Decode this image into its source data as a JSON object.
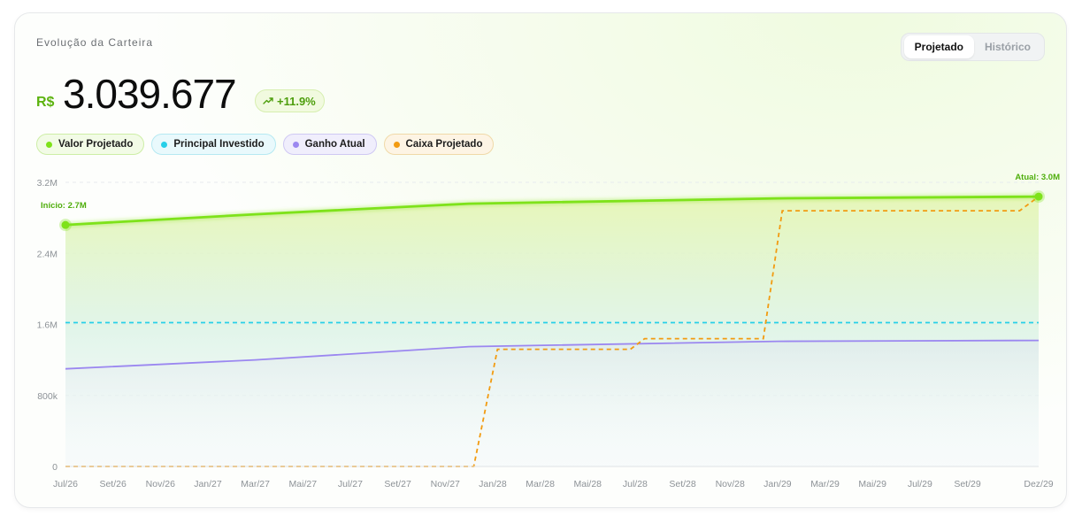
{
  "card": {
    "title": "Evolução da Carteira",
    "currency": "R$",
    "total_value": "3.039.677",
    "change": "+11.9%",
    "change_icon": "trending-up-icon"
  },
  "toggle": {
    "options": [
      "Projetado",
      "Histórico"
    ],
    "active": "Projetado"
  },
  "legend": [
    {
      "label": "Valor Projetado",
      "color": "#7ee21a",
      "bg": "#f2fbe6",
      "border": "#cdeea6"
    },
    {
      "label": "Principal Investido",
      "color": "#27cfe8",
      "bg": "#e9f9fc",
      "border": "#b5e9f2"
    },
    {
      "label": "Ganho Atual",
      "color": "#9b87f0",
      "bg": "#f0eefc",
      "border": "#cfc8f3"
    },
    {
      "label": "Caixa Projetado",
      "color": "#f29b11",
      "bg": "#fdf4e4",
      "border": "#f0d9a8"
    }
  ],
  "chart_data": {
    "type": "line",
    "ylim": [
      0,
      3200000
    ],
    "y_ticks": [
      0,
      800000,
      1600000,
      2400000,
      3200000
    ],
    "y_tick_labels": [
      "0",
      "800k",
      "1.6M",
      "2.4M",
      "3.2M"
    ],
    "x_tick_labels": [
      "Jul/26",
      "Set/26",
      "Nov/26",
      "Jan/27",
      "Mar/27",
      "Mai/27",
      "Jul/27",
      "Set/27",
      "Nov/27",
      "Jan/28",
      "Mar/28",
      "Mai/28",
      "Jul/28",
      "Set/28",
      "Nov/28",
      "Jan/29",
      "Mar/29",
      "Mai/29",
      "Jul/29",
      "Set/29",
      "Dez/29"
    ],
    "x_tick_index": [
      0,
      2,
      4,
      6,
      8,
      10,
      12,
      14,
      16,
      18,
      20,
      22,
      24,
      26,
      28,
      30,
      32,
      34,
      36,
      38,
      41
    ],
    "x_count": 42,
    "grid": true,
    "series": [
      {
        "name": "Valor Projetado",
        "style": "solid-area",
        "color": "#7ee21a",
        "points": [
          [
            0,
            2720000
          ],
          [
            8,
            2840000
          ],
          [
            17,
            2960000
          ],
          [
            30,
            3020000
          ],
          [
            41,
            3039677
          ]
        ]
      },
      {
        "name": "Principal Investido",
        "style": "dashed",
        "color": "#27cfe8",
        "points": [
          [
            0,
            1620000
          ],
          [
            41,
            1620000
          ]
        ]
      },
      {
        "name": "Ganho Atual",
        "style": "solid",
        "color": "#9b87f0",
        "points": [
          [
            0,
            1100000
          ],
          [
            8,
            1200000
          ],
          [
            17,
            1350000
          ],
          [
            30,
            1410000
          ],
          [
            41,
            1420000
          ]
        ]
      },
      {
        "name": "Caixa Projetado",
        "style": "dashed-step",
        "color": "#f29b11",
        "points": [
          [
            0,
            0
          ],
          [
            17.2,
            0
          ],
          [
            18.2,
            1320000
          ],
          [
            23.8,
            1320000
          ],
          [
            24.4,
            1440000
          ],
          [
            29.4,
            1440000
          ],
          [
            30.2,
            2880000
          ],
          [
            40.2,
            2880000
          ],
          [
            41,
            3039677
          ]
        ]
      }
    ],
    "annotations": [
      {
        "text": "Início: 2.7M",
        "at": [
          0,
          2720000
        ],
        "align": "start"
      },
      {
        "text": "Atual: 3.0M",
        "at": [
          41,
          3039677
        ],
        "align": "end"
      }
    ]
  }
}
